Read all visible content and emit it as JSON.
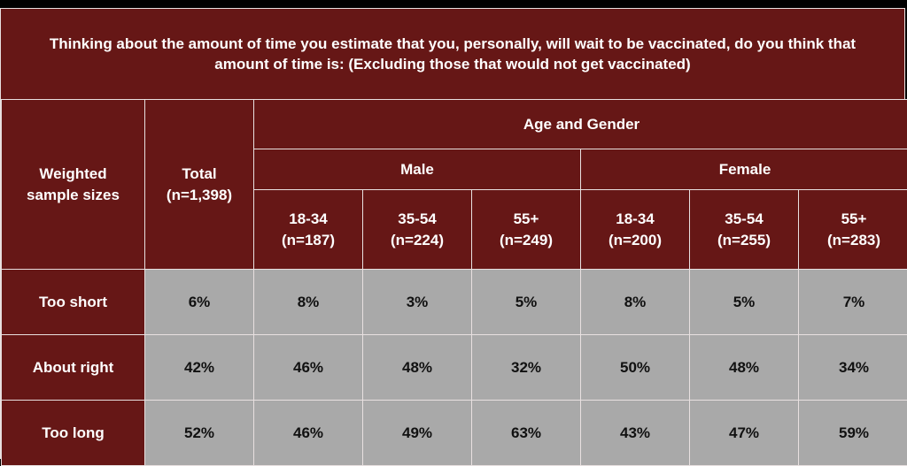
{
  "chart_data": {
    "type": "table",
    "title": "Thinking about the amount of time you estimate that you, personally, will wait to be vaccinated, do you think that amount of time is: (Excluding those that would not get vaccinated)",
    "corner_label": "Weighted sample sizes",
    "group_header": "Age and Gender",
    "total_header": {
      "label": "Total",
      "n": "(n=1,398)"
    },
    "gender_groups": [
      {
        "name": "Male",
        "columns": [
          {
            "label": "18-34",
            "n": "(n=187)"
          },
          {
            "label": "35-54",
            "n": "(n=224)"
          },
          {
            "label": "55+",
            "n": "(n=249)"
          }
        ]
      },
      {
        "name": "Female",
        "columns": [
          {
            "label": "18-34",
            "n": "(n=200)"
          },
          {
            "label": "35-54",
            "n": "(n=255)"
          },
          {
            "label": "55+",
            "n": "(n=283)"
          }
        ]
      }
    ],
    "rows": [
      {
        "label": "Too short",
        "values": [
          "6%",
          "8%",
          "3%",
          "5%",
          "8%",
          "5%",
          "7%"
        ]
      },
      {
        "label": "About right",
        "values": [
          "42%",
          "46%",
          "48%",
          "32%",
          "50%",
          "48%",
          "34%"
        ]
      },
      {
        "label": "Too long",
        "values": [
          "52%",
          "46%",
          "49%",
          "63%",
          "43%",
          "47%",
          "59%"
        ]
      }
    ]
  },
  "colors": {
    "header_bg": "#661716",
    "cell_bg": "#a9a9a9",
    "border": "#e8e0e0"
  }
}
